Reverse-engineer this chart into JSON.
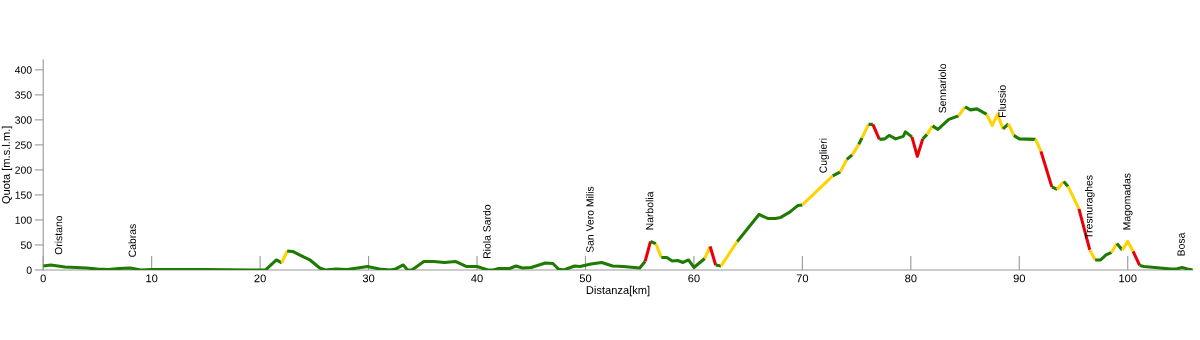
{
  "chart_data": {
    "type": "line",
    "xlabel": "Distanza[km]",
    "ylabel": "Quota [m.s.l.m.]",
    "xlim": [
      0,
      106
    ],
    "xticks": [
      0,
      10,
      20,
      30,
      40,
      50,
      60,
      70,
      80,
      90,
      100
    ],
    "ylim": [
      0,
      420
    ],
    "yticks": [
      0,
      50,
      100,
      150,
      200,
      250,
      300,
      350,
      400
    ],
    "marker": "none",
    "line_style": "solid",
    "series": [
      {
        "color": "#1e7a00",
        "x": [
          0,
          0.7,
          2,
          4,
          5,
          6,
          7,
          8,
          9,
          10,
          15,
          19,
          20.5,
          21.5,
          22
        ],
        "values": [
          8,
          10,
          6,
          4,
          2,
          1,
          3,
          4,
          0,
          1,
          1,
          0,
          0,
          20,
          14
        ]
      },
      {
        "color": "#ffd200",
        "x": [
          22,
          22.5
        ],
        "values": [
          14,
          38
        ]
      },
      {
        "color": "#1e7a00",
        "x": [
          22.5,
          23,
          24,
          24.6,
          25.5,
          26,
          27,
          28,
          29,
          29.9,
          31,
          32,
          32.5,
          33.2,
          33.6,
          34,
          35.1,
          36,
          37,
          38,
          39,
          40,
          41,
          41.5,
          42,
          43,
          43.6,
          44.2,
          45,
          46.3,
          47,
          47.5,
          48,
          49,
          49.5,
          50.5,
          51.5,
          52.5,
          53.5,
          55,
          55.5
        ],
        "values": [
          38,
          37,
          26,
          20,
          4,
          0,
          2,
          1,
          4,
          7,
          2,
          0,
          2,
          10,
          0,
          0,
          17,
          17,
          15,
          17,
          7,
          7,
          0,
          0,
          3,
          3,
          8,
          4,
          5,
          14,
          13,
          2,
          0,
          8,
          7,
          12,
          15,
          8,
          7,
          4,
          17
        ]
      },
      {
        "color": "#e8000b",
        "x": [
          55.5,
          56
        ],
        "values": [
          17,
          57
        ]
      },
      {
        "color": "#1e7a00",
        "x": [
          56,
          56.5
        ],
        "values": [
          57,
          52
        ]
      },
      {
        "color": "#ffd200",
        "x": [
          56.5,
          57
        ],
        "values": [
          52,
          25
        ]
      },
      {
        "color": "#1e7a00",
        "x": [
          57,
          57.5,
          58,
          58.5,
          59,
          59.5,
          60,
          61
        ],
        "values": [
          25,
          25,
          18,
          19,
          15,
          20,
          5,
          23
        ]
      },
      {
        "color": "#ffd200",
        "x": [
          61,
          61.5
        ],
        "values": [
          23,
          47
        ]
      },
      {
        "color": "#e8000b",
        "x": [
          61.5,
          62
        ],
        "values": [
          47,
          10
        ]
      },
      {
        "color": "#1e7a00",
        "x": [
          62,
          62.5
        ],
        "values": [
          10,
          8
        ]
      },
      {
        "color": "#ffd200",
        "x": [
          62.5,
          64
        ],
        "values": [
          8,
          57
        ]
      },
      {
        "color": "#1e7a00",
        "x": [
          64,
          66,
          66.8,
          67.5,
          68,
          68.8,
          69.6,
          70
        ],
        "values": [
          57,
          111,
          103,
          103,
          105,
          115,
          129,
          130
        ]
      },
      {
        "color": "#ffd200",
        "x": [
          70,
          72.8
        ],
        "values": [
          130,
          188
        ]
      },
      {
        "color": "#1e7a00",
        "x": [
          72.8,
          73.5
        ],
        "values": [
          188,
          196
        ]
      },
      {
        "color": "#ffd200",
        "x": [
          73.5,
          74.1
        ],
        "values": [
          196,
          221
        ]
      },
      {
        "color": "#1e7a00",
        "x": [
          74.1,
          74.6
        ],
        "values": [
          221,
          230
        ]
      },
      {
        "color": "#ffd200",
        "x": [
          74.6,
          75.2
        ],
        "values": [
          230,
          251
        ]
      },
      {
        "color": "#1e7a00",
        "x": [
          75.2,
          75.5
        ],
        "values": [
          251,
          264
        ]
      },
      {
        "color": "#ffd200",
        "x": [
          75.5,
          76.1
        ],
        "values": [
          264,
          291
        ]
      },
      {
        "color": "#1e7a00",
        "x": [
          76.1,
          76.5
        ],
        "values": [
          291,
          291
        ]
      },
      {
        "color": "#e8000b",
        "x": [
          76.5,
          77.1
        ],
        "values": [
          291,
          261
        ]
      },
      {
        "color": "#1e7a00",
        "x": [
          77.1,
          77.6,
          78,
          78.6,
          79.3,
          79.5,
          80.1
        ],
        "values": [
          261,
          262,
          269,
          262,
          267,
          276,
          266
        ]
      },
      {
        "color": "#e8000b",
        "x": [
          80.1,
          80.6,
          81.1
        ],
        "values": [
          266,
          227,
          262
        ]
      },
      {
        "color": "#1e7a00",
        "x": [
          81.1,
          81.5
        ],
        "values": [
          262,
          271
        ]
      },
      {
        "color": "#ffd200",
        "x": [
          81.5,
          82
        ],
        "values": [
          271,
          288
        ]
      },
      {
        "color": "#1e7a00",
        "x": [
          82,
          82.5,
          83.5,
          84.4
        ],
        "values": [
          288,
          281,
          301,
          308
        ]
      },
      {
        "color": "#ffd200",
        "x": [
          84.4,
          85
        ],
        "values": [
          308,
          326
        ]
      },
      {
        "color": "#1e7a00",
        "x": [
          85,
          85.5,
          86.1,
          87
        ],
        "values": [
          326,
          320,
          322,
          311
        ]
      },
      {
        "color": "#ffd200",
        "x": [
          87,
          87.5,
          88,
          88.5
        ],
        "values": [
          311,
          289,
          311,
          282
        ]
      },
      {
        "color": "#1e7a00",
        "x": [
          88.5,
          89
        ],
        "values": [
          282,
          292
        ]
      },
      {
        "color": "#ffd200",
        "x": [
          89,
          89.5
        ],
        "values": [
          292,
          269
        ]
      },
      {
        "color": "#1e7a00",
        "x": [
          89.5,
          90,
          91.5
        ],
        "values": [
          269,
          262,
          261
        ]
      },
      {
        "color": "#ffd200",
        "x": [
          91.5,
          92
        ],
        "values": [
          261,
          237
        ]
      },
      {
        "color": "#e8000b",
        "x": [
          92,
          93
        ],
        "values": [
          237,
          166
        ]
      },
      {
        "color": "#1e7a00",
        "x": [
          93,
          93.5
        ],
        "values": [
          166,
          161
        ]
      },
      {
        "color": "#ffd200",
        "x": [
          93.5,
          94.1
        ],
        "values": [
          161,
          177
        ]
      },
      {
        "color": "#1e7a00",
        "x": [
          94.1,
          94.5
        ],
        "values": [
          177,
          167
        ]
      },
      {
        "color": "#ffd200",
        "x": [
          94.5,
          95.5
        ],
        "values": [
          167,
          122
        ]
      },
      {
        "color": "#e8000b",
        "x": [
          95.5,
          96.5
        ],
        "values": [
          122,
          40
        ]
      },
      {
        "color": "#ffd200",
        "x": [
          96.5,
          97
        ],
        "values": [
          40,
          20
        ]
      },
      {
        "color": "#1e7a00",
        "x": [
          97,
          97.5,
          98,
          98.5
        ],
        "values": [
          20,
          20,
          30,
          35
        ]
      },
      {
        "color": "#ffd200",
        "x": [
          98.5,
          99
        ],
        "values": [
          35,
          53
        ]
      },
      {
        "color": "#1e7a00",
        "x": [
          99,
          99.5
        ],
        "values": [
          53,
          40
        ]
      },
      {
        "color": "#ffd200",
        "x": [
          99.5,
          100,
          100.5
        ],
        "values": [
          40,
          57,
          37
        ]
      },
      {
        "color": "#e8000b",
        "x": [
          100.5,
          101.1
        ],
        "values": [
          37,
          9
        ]
      },
      {
        "color": "#1e7a00",
        "x": [
          101.1,
          101.5,
          102.5,
          103,
          104,
          104.5,
          105,
          105.5,
          106
        ],
        "values": [
          9,
          7,
          5,
          4,
          2,
          2,
          5,
          2,
          0
        ]
      }
    ],
    "annotations": [
      {
        "text": "Oristano",
        "x": 1.5,
        "y": 8
      },
      {
        "text": "Cabras",
        "x": 8.3,
        "y": 3
      },
      {
        "text": "Riola Sardo",
        "x": 41,
        "y": 0
      },
      {
        "text": "San Vero Milis",
        "x": 50.5,
        "y": 12
      },
      {
        "text": "Narbolia",
        "x": 56,
        "y": 57
      },
      {
        "text": "Cuglieri",
        "x": 72,
        "y": 171
      },
      {
        "text": "Sennariolo",
        "x": 83,
        "y": 291
      },
      {
        "text": "Flussio",
        "x": 88.5,
        "y": 282
      },
      {
        "text": "Tresnuraghes",
        "x": 96.5,
        "y": 40
      },
      {
        "text": "Magomadas",
        "x": 100,
        "y": 57
      },
      {
        "text": "Bosa",
        "x": 105,
        "y": 5
      }
    ]
  }
}
